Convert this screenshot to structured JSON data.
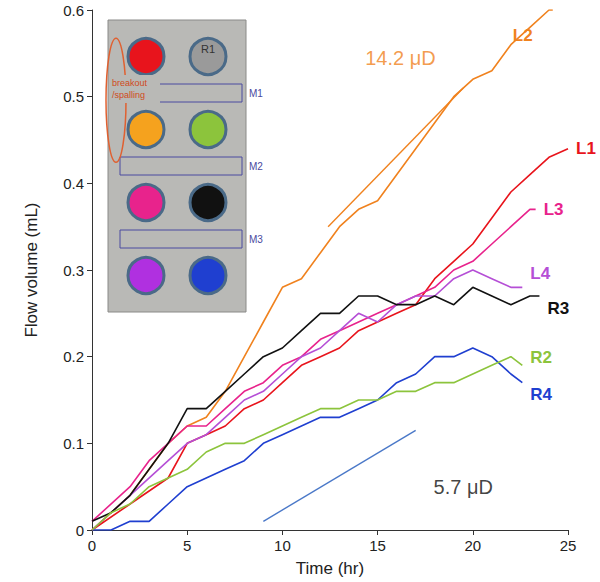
{
  "chart_data": {
    "type": "line",
    "x_label": "Time (hr)",
    "y_label": "Flow volume (mL)",
    "xlim": [
      0,
      25
    ],
    "xticks": [
      0,
      5,
      10,
      15,
      20,
      25
    ],
    "ylim": [
      0,
      0.6
    ],
    "yticks": [
      0,
      0.1,
      0.2,
      0.3,
      0.4,
      0.5,
      0.6
    ],
    "grid": false,
    "series": [
      {
        "name": "L2",
        "color": "#f0821e",
        "x": [
          0,
          1,
          2,
          3,
          4,
          5,
          6,
          7,
          8,
          9,
          10,
          11,
          12,
          13,
          14,
          15,
          16,
          17,
          18,
          19,
          20,
          21,
          22,
          23,
          24,
          24.2
        ],
        "values": [
          0,
          0.02,
          0.04,
          0.07,
          0.1,
          0.12,
          0.13,
          0.16,
          0.2,
          0.24,
          0.28,
          0.29,
          0.32,
          0.35,
          0.37,
          0.38,
          0.41,
          0.44,
          0.47,
          0.5,
          0.52,
          0.53,
          0.56,
          0.58,
          0.6,
          0.6
        ]
      },
      {
        "name": "L1",
        "color": "#e8141c",
        "x": [
          0,
          2,
          4,
          5,
          6,
          7,
          8,
          9,
          10,
          11,
          12,
          13,
          14,
          15,
          16,
          17,
          18,
          19,
          20,
          21,
          22,
          23,
          24,
          25
        ],
        "values": [
          0,
          0.03,
          0.06,
          0.1,
          0.11,
          0.12,
          0.14,
          0.15,
          0.17,
          0.19,
          0.2,
          0.21,
          0.23,
          0.24,
          0.25,
          0.26,
          0.29,
          0.31,
          0.33,
          0.36,
          0.39,
          0.41,
          0.43,
          0.44
        ]
      },
      {
        "name": "L3",
        "color": "#e8238c",
        "x": [
          0,
          2,
          3,
          4,
          5,
          6,
          7,
          8,
          9,
          10,
          11,
          12,
          13,
          14,
          15,
          16,
          17,
          18,
          19,
          20,
          21,
          22,
          23,
          23.3
        ],
        "values": [
          0.01,
          0.05,
          0.08,
          0.1,
          0.12,
          0.12,
          0.14,
          0.16,
          0.17,
          0.19,
          0.2,
          0.22,
          0.23,
          0.24,
          0.25,
          0.26,
          0.27,
          0.28,
          0.3,
          0.31,
          0.33,
          0.35,
          0.37,
          0.37
        ]
      },
      {
        "name": "L4",
        "color": "#b54fd6",
        "x": [
          0,
          2,
          4,
          5,
          6,
          7,
          8,
          9,
          10,
          11,
          12,
          13,
          14,
          15,
          16,
          17,
          18,
          19,
          20,
          21,
          22,
          22.6
        ],
        "values": [
          0,
          0.04,
          0.08,
          0.1,
          0.11,
          0.13,
          0.15,
          0.16,
          0.18,
          0.2,
          0.21,
          0.23,
          0.25,
          0.24,
          0.26,
          0.27,
          0.27,
          0.29,
          0.3,
          0.29,
          0.28,
          0.28
        ]
      },
      {
        "name": "R3",
        "color": "#111111",
        "x": [
          0,
          1,
          2,
          3,
          4,
          5,
          6,
          7,
          8,
          9,
          10,
          11,
          12,
          13,
          14,
          15,
          16,
          17,
          18,
          19,
          20,
          21,
          22,
          23,
          23.5
        ],
        "values": [
          0.01,
          0.02,
          0.04,
          0.07,
          0.1,
          0.14,
          0.14,
          0.16,
          0.18,
          0.2,
          0.21,
          0.23,
          0.25,
          0.25,
          0.27,
          0.27,
          0.26,
          0.26,
          0.27,
          0.26,
          0.28,
          0.27,
          0.26,
          0.27,
          0.27
        ]
      },
      {
        "name": "R4",
        "color": "#1f3fd0",
        "x": [
          0,
          1,
          2,
          3,
          4,
          5,
          6,
          7,
          8,
          9,
          10,
          11,
          12,
          13,
          14,
          15,
          16,
          17,
          18,
          19,
          20,
          21,
          22,
          22.6
        ],
        "values": [
          0,
          0,
          0.01,
          0.01,
          0.03,
          0.05,
          0.06,
          0.07,
          0.08,
          0.1,
          0.11,
          0.12,
          0.13,
          0.13,
          0.14,
          0.15,
          0.17,
          0.18,
          0.2,
          0.2,
          0.21,
          0.2,
          0.18,
          0.17
        ]
      },
      {
        "name": "R2",
        "color": "#8cc43c",
        "x": [
          0,
          1,
          2,
          3,
          4,
          5,
          6,
          7,
          8,
          9,
          10,
          11,
          12,
          13,
          14,
          15,
          16,
          17,
          18,
          19,
          20,
          21,
          22,
          22.6
        ],
        "values": [
          0,
          0.02,
          0.03,
          0.05,
          0.06,
          0.07,
          0.09,
          0.1,
          0.1,
          0.11,
          0.12,
          0.13,
          0.14,
          0.14,
          0.15,
          0.15,
          0.16,
          0.16,
          0.17,
          0.17,
          0.18,
          0.19,
          0.2,
          0.19
        ]
      }
    ],
    "annotations": [
      {
        "text": "14.2 μD",
        "x": 16.2,
        "y": 0.545,
        "color": "#f0821e",
        "line": {
          "x": [
            12.4,
            19.5
          ],
          "y": [
            0.35,
            0.51
          ],
          "color": "#f0821e"
        }
      },
      {
        "text": "5.7 μD",
        "x": 19.5,
        "y": 0.05,
        "color": "#111111",
        "line": {
          "x": [
            9,
            17
          ],
          "y": [
            0.01,
            0.115
          ],
          "color": "#4a78c8"
        }
      }
    ],
    "inset": {
      "circles": [
        [
          {
            "color": "#e8141c"
          },
          {
            "label": "R1",
            "color": "#9a9a9a"
          }
        ],
        [
          {
            "color": "#f5a21e"
          },
          {
            "color": "#8cc43c"
          }
        ],
        [
          {
            "color": "#e8238c"
          },
          {
            "color": "#111111"
          }
        ],
        [
          {
            "color": "#b030e0"
          },
          {
            "color": "#1f3fd0"
          }
        ]
      ],
      "bands": [
        "M1",
        "M2",
        "M3"
      ],
      "note": "breakout /spalling"
    }
  }
}
